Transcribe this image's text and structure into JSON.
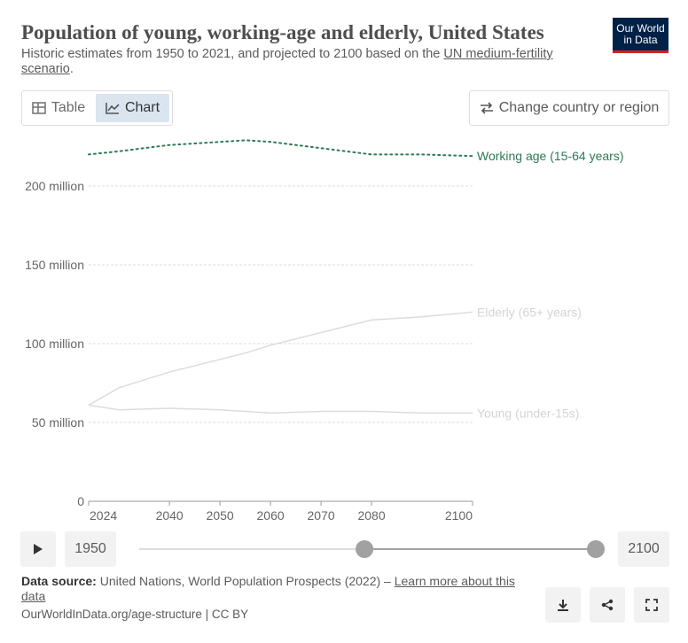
{
  "header": {
    "title": "Population of young, working-age and elderly, United States",
    "subtitle": [
      "Historic estimates from 1950 to 2021, and projected to 2100 based on the ",
      "UN medium-fertility scenario",
      "."
    ],
    "logo": [
      "Our World",
      "in Data"
    ]
  },
  "controls": {
    "table": "Table",
    "chart": "Chart",
    "change": "Change country or region"
  },
  "chart_data": {
    "type": "line",
    "x": [
      2024,
      2030,
      2040,
      2050,
      2055,
      2060,
      2070,
      2080,
      2090,
      2100
    ],
    "series": [
      {
        "name": "Working age (15-64 years)",
        "color": "#2d7a56",
        "dashed": true,
        "values": [
          220000000,
          222000000,
          226000000,
          228000000,
          229000000,
          228000000,
          224000000,
          220000000,
          220000000,
          219000000
        ]
      },
      {
        "name": "Elderly (65+ years)",
        "color": "#dcdcdc",
        "label_color": "#d4d4d4",
        "values": [
          61000000,
          72000000,
          82000000,
          90000000,
          94000000,
          99000000,
          107000000,
          115000000,
          117000000,
          120000000
        ]
      },
      {
        "name": "Young (under-15s)",
        "color": "#dcdcdc",
        "label_color": "#d4d4d4",
        "values": [
          61000000,
          58000000,
          59000000,
          58000000,
          57000000,
          56000000,
          57000000,
          57000000,
          56000000,
          56000000
        ]
      }
    ],
    "xlim": [
      2024,
      2100
    ],
    "xticks": [
      2024,
      2040,
      2050,
      2060,
      2070,
      2080,
      2100
    ],
    "ylim": [
      0,
      250000000
    ],
    "yticks": [
      0,
      {
        "value": 50000000,
        "label": "50 million"
      },
      {
        "value": 100000000,
        "label": "100 million"
      },
      {
        "value": 150000000,
        "label": "150 million"
      },
      {
        "value": 200000000,
        "label": "200 million"
      }
    ],
    "grid": true
  },
  "timeline": {
    "min": 1950,
    "max": 2100,
    "selected": [
      2024,
      2100
    ],
    "start_label": "1950",
    "end_label": "2100"
  },
  "footer": {
    "source_label": "Data source:",
    "source": " United Nations, World Population Prospects (2022) – ",
    "link": "Learn more about this data",
    "credit": "OurWorldInData.org/age-structure | CC BY"
  }
}
